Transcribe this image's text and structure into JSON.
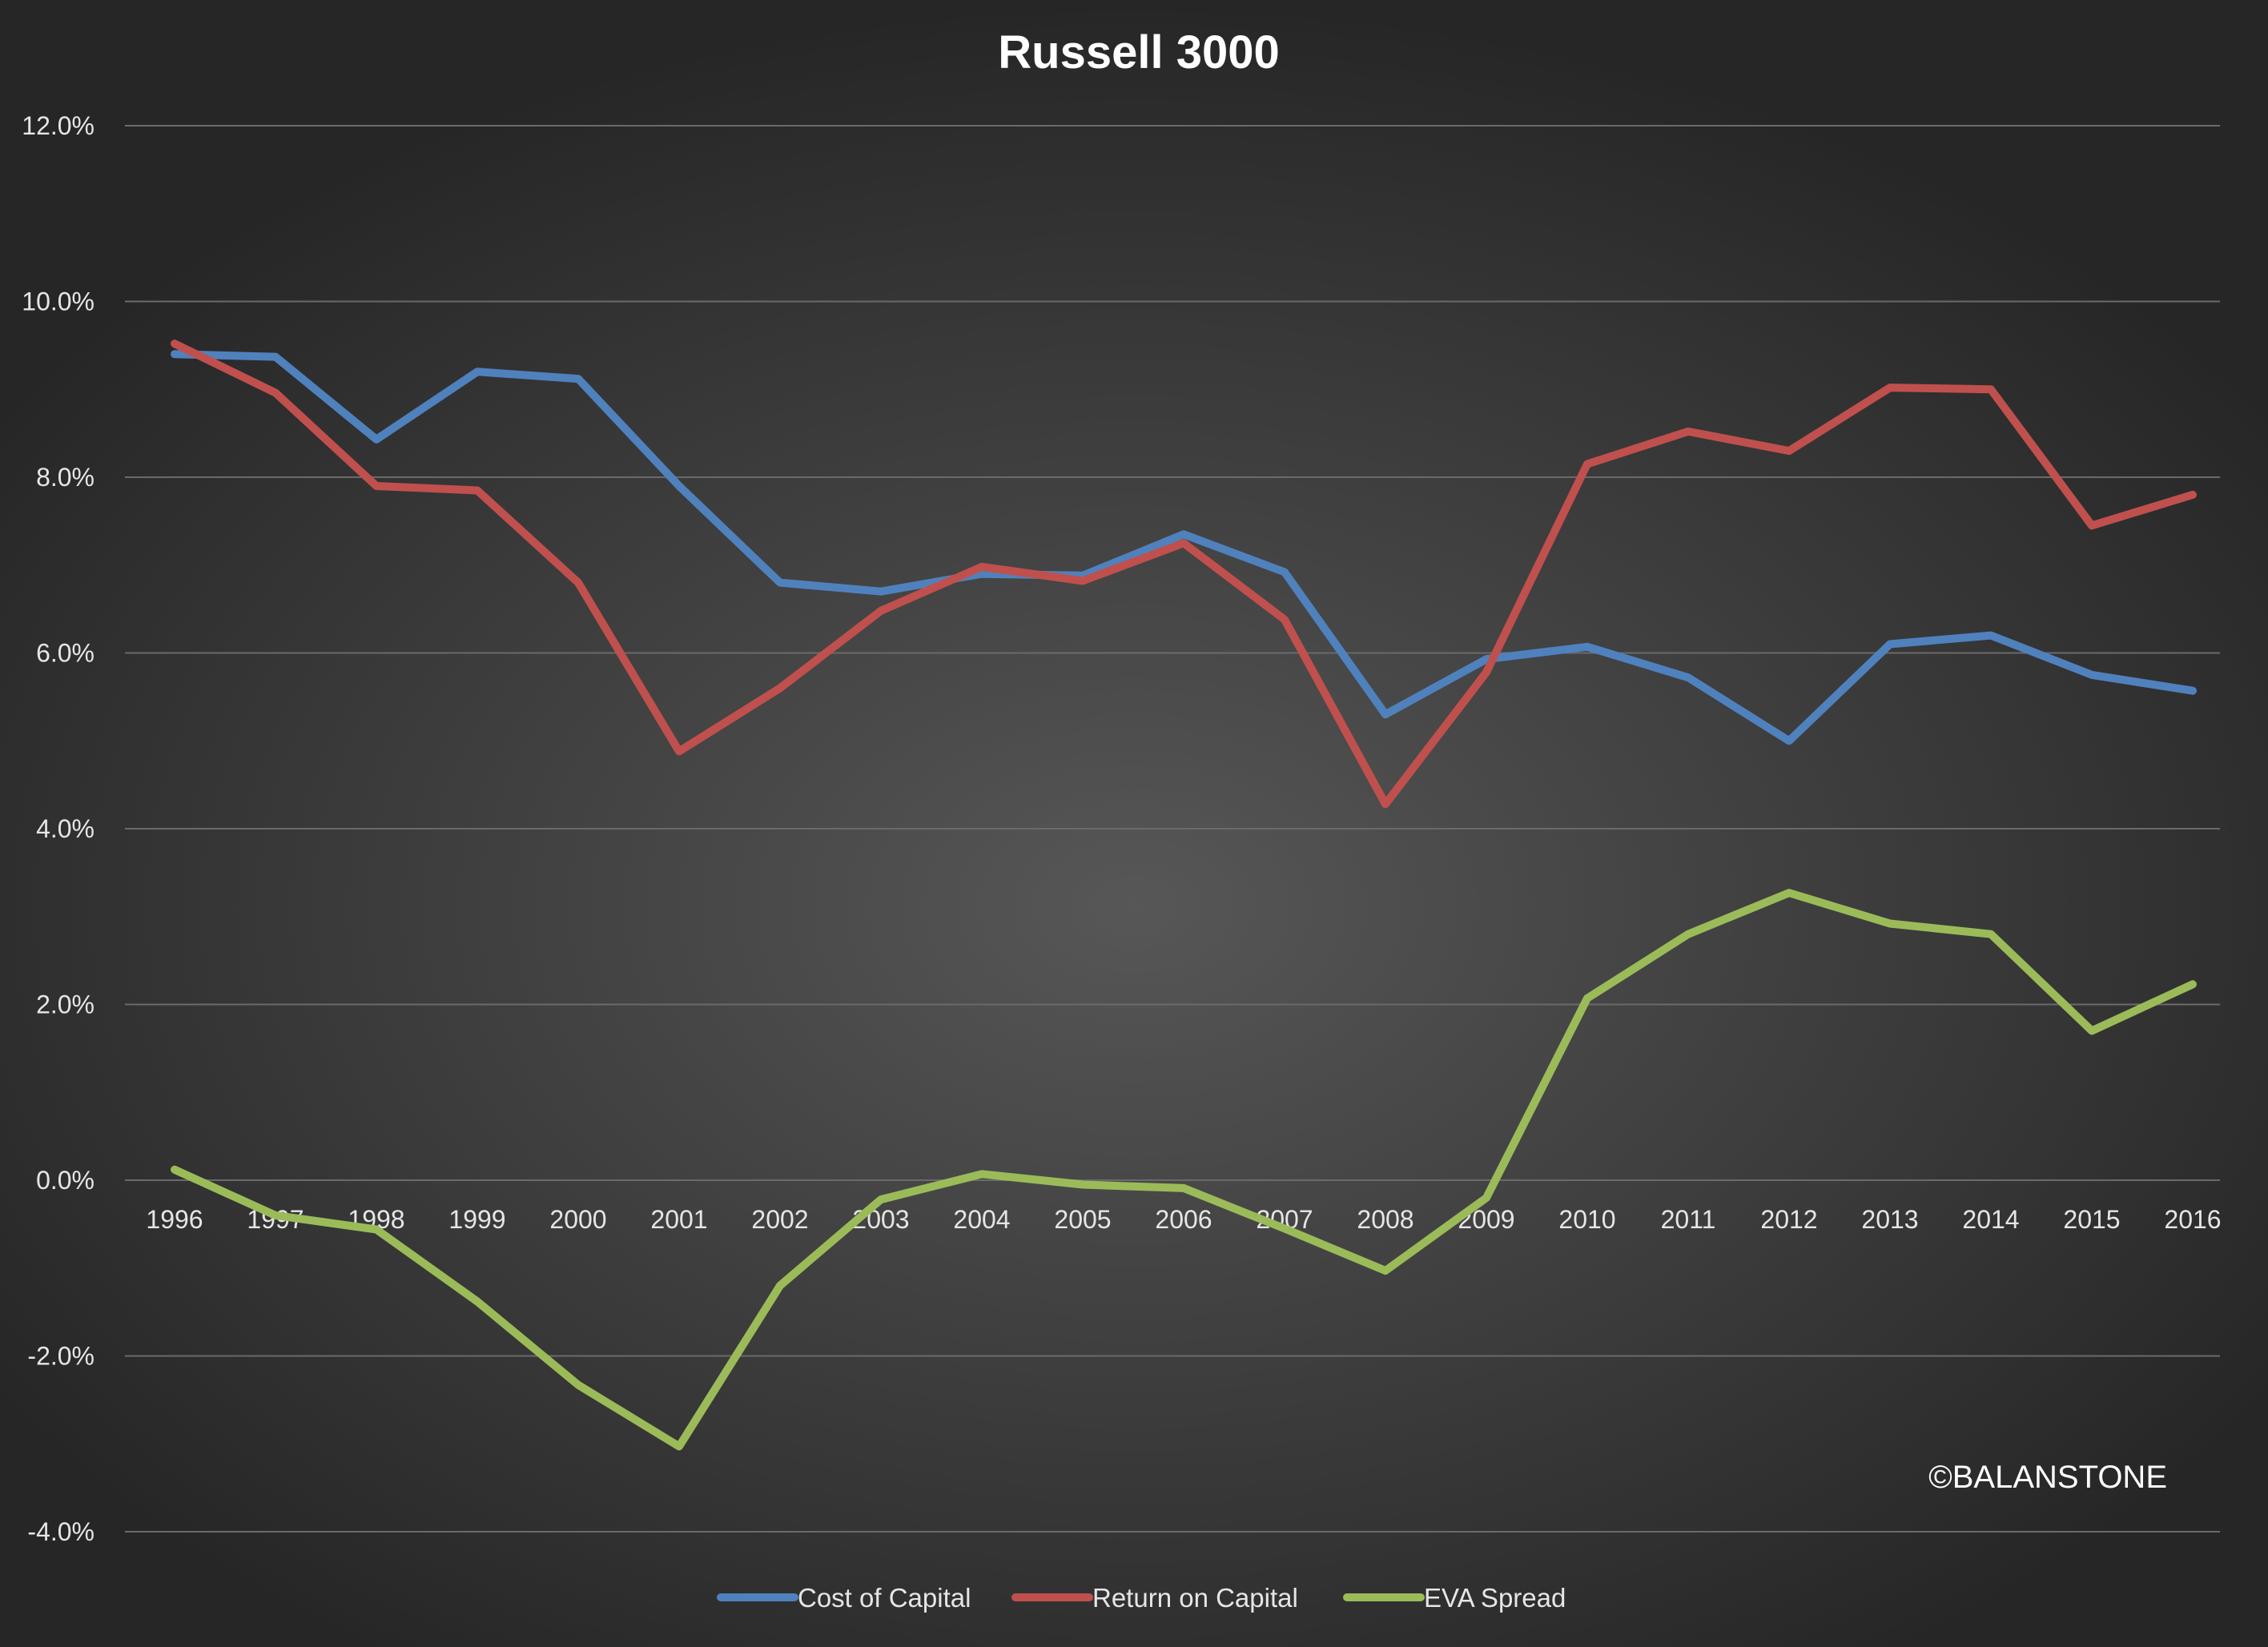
{
  "chart_data": {
    "type": "line",
    "title": "Russell 3000",
    "xlabel": "",
    "ylabel": "",
    "ylim": [
      -4,
      12
    ],
    "yticks": [
      -4,
      -2,
      0,
      2,
      4,
      6,
      8,
      10,
      12
    ],
    "ytick_labels": [
      "-4.0%",
      "-2.0%",
      "0.0%",
      "2.0%",
      "4.0%",
      "6.0%",
      "8.0%",
      "10.0%",
      "12.0%"
    ],
    "grid": true,
    "legend": "bottom-center",
    "categories": [
      "1996",
      "1997",
      "1998",
      "1999",
      "2000",
      "2001",
      "2002",
      "2003",
      "2004",
      "2005",
      "2006",
      "2007",
      "2008",
      "2009",
      "2010",
      "2011",
      "2012",
      "2013",
      "2014",
      "2015",
      "2016"
    ],
    "series": [
      {
        "name": "Cost of Capital",
        "color": "#4f81bd",
        "values": [
          9.4,
          9.37,
          8.43,
          9.2,
          9.12,
          7.9,
          6.8,
          6.7,
          6.9,
          6.88,
          7.35,
          6.92,
          5.3,
          5.93,
          6.07,
          5.72,
          5.0,
          6.1,
          6.2,
          5.75,
          5.57
        ]
      },
      {
        "name": "Return on Capital",
        "color": "#c0504d",
        "values": [
          9.52,
          8.96,
          7.9,
          7.85,
          6.8,
          4.88,
          5.6,
          6.48,
          6.98,
          6.82,
          7.25,
          6.38,
          4.28,
          5.78,
          8.15,
          8.52,
          8.3,
          9.02,
          9.0,
          7.45,
          7.8
        ]
      },
      {
        "name": "EVA Spread",
        "color": "#9bbb59",
        "values": [
          0.12,
          -0.4,
          -0.56,
          -1.38,
          -2.33,
          -3.03,
          -1.2,
          -0.22,
          0.07,
          -0.05,
          -0.09,
          -0.55,
          -1.03,
          -0.2,
          2.07,
          2.8,
          3.27,
          2.92,
          2.8,
          1.7,
          2.23
        ]
      }
    ]
  },
  "watermark": "©BALANSTONE"
}
